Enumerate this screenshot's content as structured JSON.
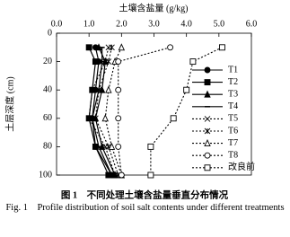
{
  "chart_data": {
    "type": "line",
    "x_label": "土壤含盐量 (g/kg)",
    "y_label": "土层深度 (cm)",
    "caption_cn": "图 1　不同处理土壤含盐量垂直分布情况",
    "caption_en": "Fig. 1　Profile distribution of soil salt contents under different treatments",
    "y": [
      10,
      20,
      40,
      60,
      80,
      100
    ],
    "xlim": [
      0,
      6
    ],
    "ylim": [
      0,
      100
    ],
    "y_inverted": true,
    "x_axis_position": "top",
    "xticks": [
      {
        "value": 0,
        "label": "0.0"
      },
      {
        "value": 1,
        "label": "1.0"
      },
      {
        "value": 2,
        "label": "2.0"
      },
      {
        "value": 3,
        "label": "3.0"
      },
      {
        "value": 4,
        "label": "4.0"
      },
      {
        "value": 5,
        "label": "5.0"
      },
      {
        "value": 6,
        "label": "6.0"
      }
    ],
    "yticks": [
      0,
      20,
      40,
      60,
      80,
      100
    ],
    "legend": "right",
    "series": [
      {
        "name": "T1",
        "color": "#000000",
        "marker": "circle-filled",
        "line_style": "solid",
        "values": [
          1.2,
          1.3,
          1.2,
          1.1,
          1.2,
          1.7
        ]
      },
      {
        "name": "T2",
        "color": "#000000",
        "marker": "square-filled",
        "line_style": "solid",
        "values": [
          1.0,
          1.2,
          1.1,
          1.0,
          1.2,
          1.6
        ]
      },
      {
        "name": "T3",
        "color": "#000000",
        "marker": "triangle-filled",
        "line_style": "solid",
        "values": [
          1.3,
          1.5,
          1.4,
          1.2,
          1.4,
          1.8
        ]
      },
      {
        "name": "T4",
        "color": "#000000",
        "marker": "dash",
        "line_style": "solid",
        "values": [
          1.4,
          1.4,
          1.3,
          1.1,
          1.3,
          1.7
        ]
      },
      {
        "name": "T5",
        "color": "#000000",
        "marker": "cross",
        "line_style": "dotted",
        "values": [
          1.6,
          1.5,
          1.1,
          1.0,
          1.5,
          1.8
        ]
      },
      {
        "name": "T6",
        "color": "#000000",
        "marker": "star",
        "line_style": "dotted",
        "values": [
          1.7,
          1.6,
          1.3,
          1.2,
          1.6,
          1.9
        ]
      },
      {
        "name": "T7",
        "color": "#000000",
        "marker": "triangle-open",
        "line_style": "dotted",
        "values": [
          2.0,
          1.8,
          1.6,
          1.5,
          1.7,
          2.0
        ]
      },
      {
        "name": "T8",
        "color": "#000000",
        "marker": "circle-open",
        "line_style": "dotted",
        "values": [
          3.5,
          1.9,
          1.9,
          1.9,
          1.9,
          2.0
        ]
      },
      {
        "name": "改良前",
        "color": "#000000",
        "marker": "square-open",
        "line_style": "dotted",
        "values": [
          5.1,
          4.2,
          4.0,
          3.6,
          2.9,
          2.9
        ]
      }
    ]
  }
}
